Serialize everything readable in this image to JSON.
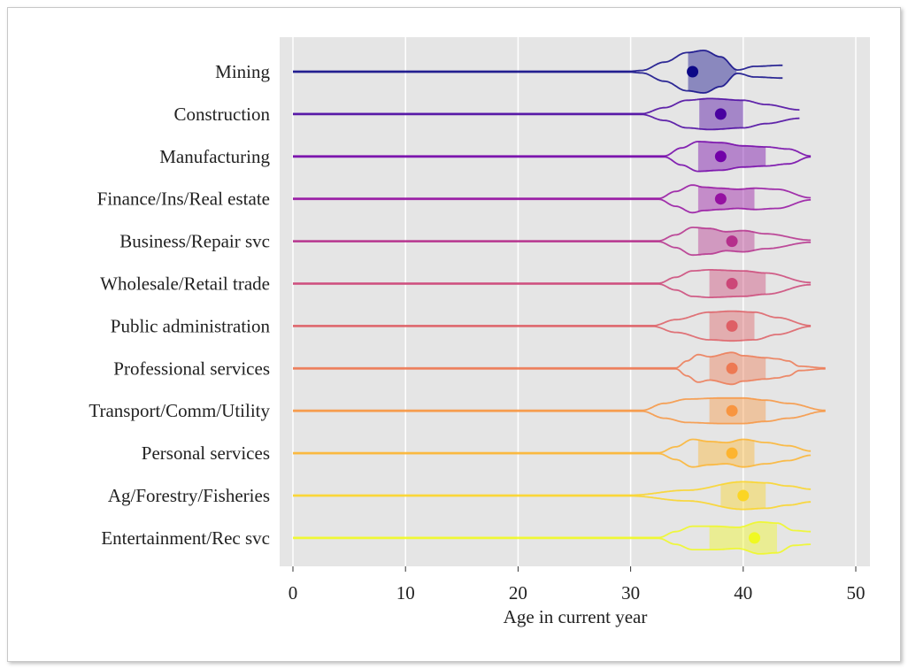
{
  "chart_data": {
    "type": "violin",
    "xlabel": "Age in current year",
    "xlim": [
      -1.2,
      51.3
    ],
    "xticks": [
      0,
      10,
      20,
      30,
      40,
      50
    ],
    "grid": "vertical",
    "colormap": "plasma",
    "background": "#e5e5e5",
    "categories": [
      "Mining",
      "Construction",
      "Manufacturing",
      "Finance/Ins/Real estate",
      "Business/Repair svc",
      "Wholesale/Retail trade",
      "Public administration",
      "Professional services",
      "Transport/Comm/Utility",
      "Personal services",
      "Ag/Forestry/Fisheries",
      "Entertainment/Rec svc"
    ],
    "series": [
      {
        "color": "#0d0887",
        "median": 35.5,
        "q1": 35.1,
        "q3": 39.4,
        "density": [
          [
            0,
            0.02
          ],
          [
            30,
            0.02
          ],
          [
            31,
            0.06
          ],
          [
            33,
            0.45
          ],
          [
            35,
            0.9
          ],
          [
            36.5,
            1.0
          ],
          [
            38,
            0.7
          ],
          [
            39.5,
            0.08
          ],
          [
            41,
            0.25
          ],
          [
            43.5,
            0.3
          ]
        ]
      },
      {
        "color": "#4903a0",
        "median": 38.0,
        "q1": 36.1,
        "q3": 40.0,
        "density": [
          [
            0,
            0.02
          ],
          [
            31,
            0.02
          ],
          [
            33,
            0.3
          ],
          [
            35,
            0.65
          ],
          [
            37,
            0.73
          ],
          [
            40,
            0.65
          ],
          [
            42,
            0.45
          ],
          [
            45,
            0.2
          ]
        ]
      },
      {
        "color": "#7201a8",
        "median": 38.0,
        "q1": 36.0,
        "q3": 42.0,
        "density": [
          [
            0,
            0.02
          ],
          [
            33,
            0.02
          ],
          [
            34.5,
            0.4
          ],
          [
            36,
            0.7
          ],
          [
            38,
            0.65
          ],
          [
            40,
            0.5
          ],
          [
            42,
            0.45
          ],
          [
            44,
            0.35
          ],
          [
            46,
            0.02
          ]
        ]
      },
      {
        "color": "#9511a1",
        "median": 38.0,
        "q1": 36.0,
        "q3": 41.0,
        "density": [
          [
            0,
            0.02
          ],
          [
            32.5,
            0.02
          ],
          [
            34,
            0.35
          ],
          [
            35.5,
            0.65
          ],
          [
            36.5,
            0.55
          ],
          [
            38,
            0.5
          ],
          [
            39.5,
            0.45
          ],
          [
            41,
            0.5
          ],
          [
            43,
            0.45
          ],
          [
            46,
            0.05
          ]
        ]
      },
      {
        "color": "#b52f8c",
        "median": 39.0,
        "q1": 36.0,
        "q3": 41.0,
        "density": [
          [
            0,
            0.02
          ],
          [
            32.5,
            0.02
          ],
          [
            34,
            0.3
          ],
          [
            35.5,
            0.65
          ],
          [
            37,
            0.6
          ],
          [
            38.5,
            0.45
          ],
          [
            40,
            0.5
          ],
          [
            42,
            0.35
          ],
          [
            46,
            0.05
          ]
        ]
      },
      {
        "color": "#cc4778",
        "median": 39.0,
        "q1": 37.0,
        "q3": 42.0,
        "density": [
          [
            0,
            0.02
          ],
          [
            32.5,
            0.02
          ],
          [
            34,
            0.3
          ],
          [
            35.5,
            0.6
          ],
          [
            37,
            0.65
          ],
          [
            40,
            0.6
          ],
          [
            42,
            0.5
          ],
          [
            46,
            0.05
          ]
        ]
      },
      {
        "color": "#de5f65",
        "median": 39.0,
        "q1": 37.0,
        "q3": 41.0,
        "density": [
          [
            0,
            0.02
          ],
          [
            32,
            0.02
          ],
          [
            34,
            0.3
          ],
          [
            37,
            0.65
          ],
          [
            39,
            0.7
          ],
          [
            41,
            0.65
          ],
          [
            43,
            0.4
          ],
          [
            46,
            0.02
          ]
        ]
      },
      {
        "color": "#ed7953",
        "median": 39.0,
        "q1": 37.0,
        "q3": 42.0,
        "density": [
          [
            0,
            0.02
          ],
          [
            34,
            0.02
          ],
          [
            35,
            0.35
          ],
          [
            36,
            0.65
          ],
          [
            37,
            0.55
          ],
          [
            39,
            0.75
          ],
          [
            40,
            0.6
          ],
          [
            42,
            0.5
          ],
          [
            43,
            0.45
          ],
          [
            44,
            0.35
          ],
          [
            45,
            0.1
          ],
          [
            47.3,
            0.02
          ]
        ]
      },
      {
        "color": "#f89540",
        "median": 39.0,
        "q1": 37.0,
        "q3": 42.0,
        "density": [
          [
            0,
            0.02
          ],
          [
            31,
            0.02
          ],
          [
            33,
            0.35
          ],
          [
            35,
            0.55
          ],
          [
            38,
            0.6
          ],
          [
            40,
            0.6
          ],
          [
            42,
            0.5
          ],
          [
            44,
            0.35
          ],
          [
            47.3,
            0.02
          ]
        ]
      },
      {
        "color": "#fdb42f",
        "median": 39.0,
        "q1": 36.0,
        "q3": 41.0,
        "density": [
          [
            0,
            0.02
          ],
          [
            32.5,
            0.02
          ],
          [
            34,
            0.3
          ],
          [
            35.5,
            0.65
          ],
          [
            37,
            0.55
          ],
          [
            38.5,
            0.5
          ],
          [
            40,
            0.65
          ],
          [
            42,
            0.5
          ],
          [
            44,
            0.35
          ],
          [
            46,
            0.1
          ]
        ]
      },
      {
        "color": "#fbd524",
        "median": 40.0,
        "q1": 38.0,
        "q3": 42.0,
        "density": [
          [
            0,
            0.02
          ],
          [
            30,
            0.02
          ],
          [
            35,
            0.25
          ],
          [
            40,
            0.65
          ],
          [
            42,
            0.6
          ],
          [
            44,
            0.45
          ],
          [
            46,
            0.3
          ]
        ]
      },
      {
        "color": "#f0f921",
        "median": 41.0,
        "q1": 37.0,
        "q3": 43.0,
        "density": [
          [
            0,
            0.02
          ],
          [
            32.5,
            0.02
          ],
          [
            34,
            0.3
          ],
          [
            35.5,
            0.55
          ],
          [
            37.5,
            0.55
          ],
          [
            39.5,
            0.5
          ],
          [
            41.5,
            0.75
          ],
          [
            43,
            0.7
          ],
          [
            44.5,
            0.35
          ],
          [
            46,
            0.3
          ]
        ]
      }
    ]
  }
}
